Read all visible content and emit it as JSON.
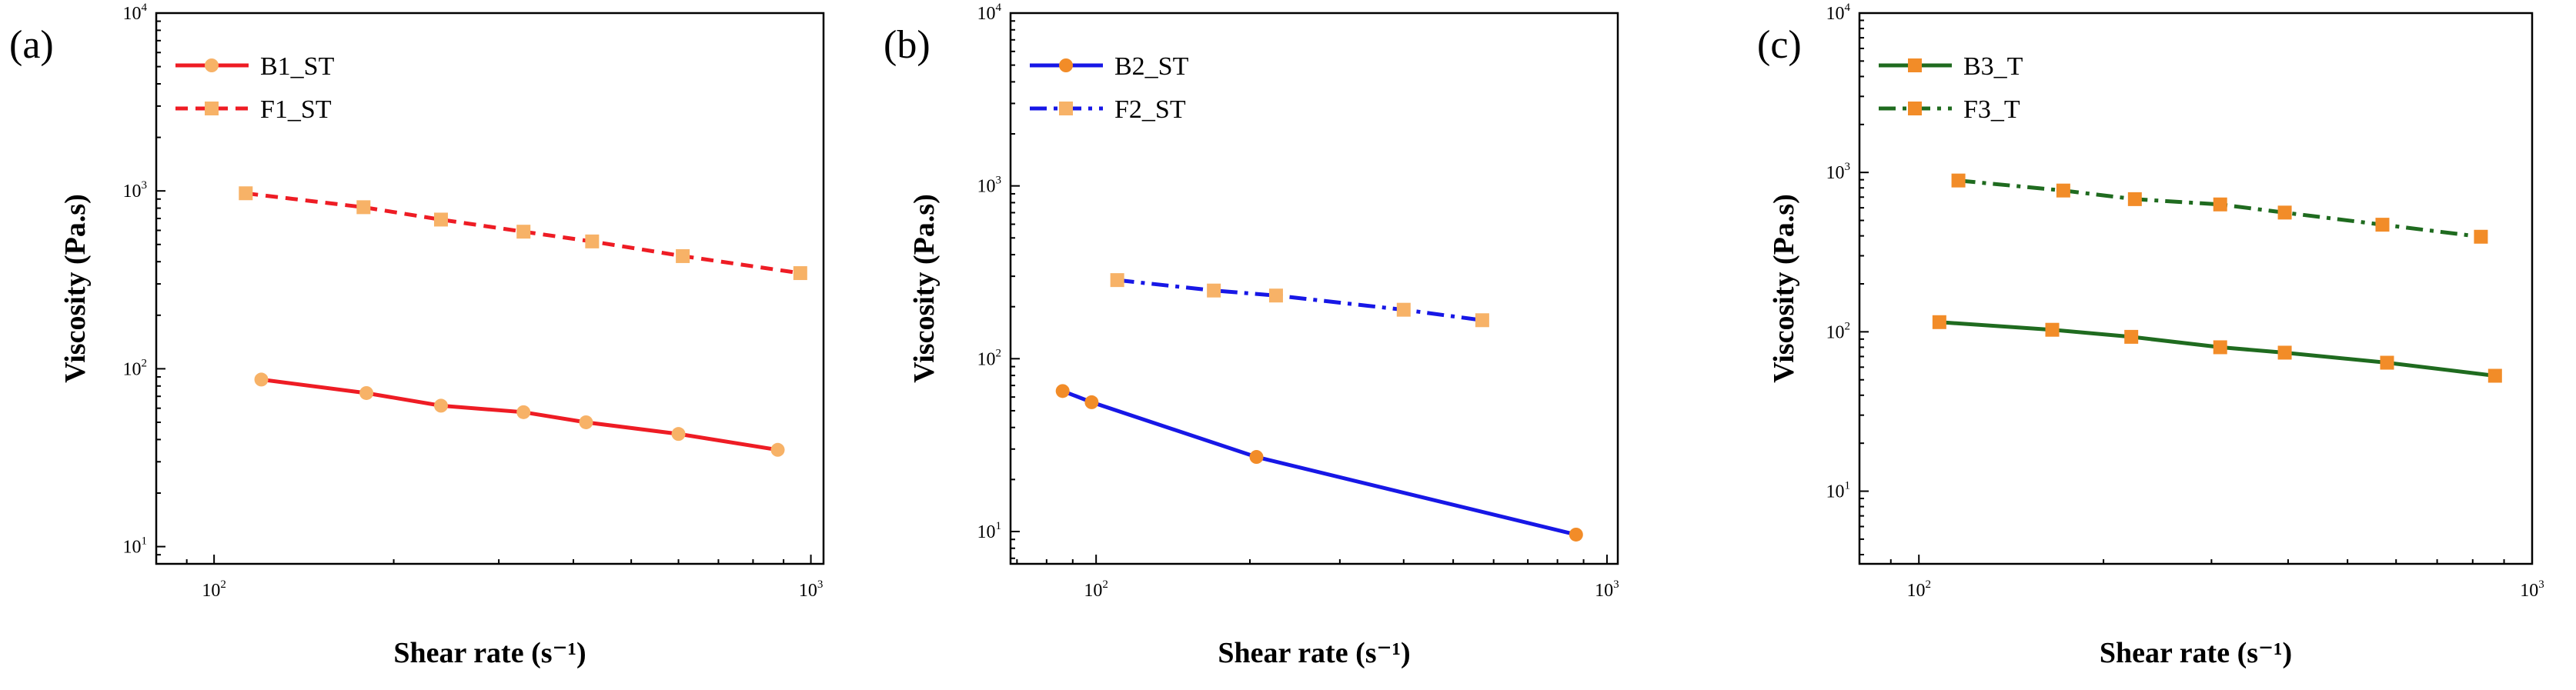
{
  "chart_data": [
    {
      "type": "line",
      "panel_label": "(a)",
      "xlabel": "Shear rate (s⁻¹)",
      "ylabel": "Viscosity (Pa.s)",
      "xscale": "log",
      "yscale": "log",
      "xlim": [
        80,
        1050
      ],
      "ylim": [
        8,
        10000
      ],
      "xticks": [
        {
          "base": "10",
          "exp": "2",
          "value": 100
        },
        {
          "base": "10",
          "exp": "3",
          "value": 1000
        }
      ],
      "yticks": [
        {
          "base": "10",
          "exp": "1",
          "value": 10
        },
        {
          "base": "10",
          "exp": "2",
          "value": 100
        },
        {
          "base": "10",
          "exp": "3",
          "value": 1000
        },
        {
          "base": "10",
          "exp": "4",
          "value": 10000
        }
      ],
      "legend_position": "top-left",
      "series": [
        {
          "name": "B1_ST",
          "color": "#ee1c24",
          "style": "solid",
          "marker": "circle",
          "marker_color": "#f7b267",
          "x": [
            120,
            180,
            240,
            330,
            420,
            600,
            880
          ],
          "y": [
            87,
            73,
            62,
            57,
            50,
            43,
            35
          ]
        },
        {
          "name": "F1_ST",
          "color": "#ee1c24",
          "style": "dash",
          "marker": "square",
          "marker_color": "#f7b267",
          "x": [
            113,
            178,
            240,
            330,
            430,
            610,
            960
          ],
          "y": [
            970,
            810,
            690,
            590,
            520,
            430,
            345
          ]
        }
      ]
    },
    {
      "type": "line",
      "panel_label": "(b)",
      "xlabel": "Shear rate (s⁻¹)",
      "ylabel": "Viscosity (Pa.s)",
      "xscale": "log",
      "yscale": "log",
      "xlim": [
        68,
        1050
      ],
      "ylim": [
        6.5,
        10000
      ],
      "xticks": [
        {
          "base": "10",
          "exp": "2",
          "value": 100
        },
        {
          "base": "10",
          "exp": "3",
          "value": 1000
        }
      ],
      "yticks": [
        {
          "base": "10",
          "exp": "1",
          "value": 10
        },
        {
          "base": "10",
          "exp": "2",
          "value": 100
        },
        {
          "base": "10",
          "exp": "3",
          "value": 1000
        },
        {
          "base": "10",
          "exp": "4",
          "value": 10000
        }
      ],
      "legend_position": "top-left",
      "series": [
        {
          "name": "B2_ST",
          "color": "#1717e6",
          "style": "solid",
          "marker": "circle",
          "marker_color": "#f28c28",
          "x": [
            86,
            98,
            206,
            870
          ],
          "y": [
            65,
            56,
            27,
            9.6
          ]
        },
        {
          "name": "F2_ST",
          "color": "#1717e6",
          "style": "dashdot",
          "marker": "square",
          "marker_color": "#f7b267",
          "x": [
            110,
            170,
            225,
            400,
            570
          ],
          "y": [
            285,
            248,
            232,
            192,
            167
          ]
        }
      ]
    },
    {
      "type": "line",
      "panel_label": "(c)",
      "xlabel": "Shear rate (s⁻¹)",
      "ylabel": "Viscosity (Pa.s)",
      "xscale": "log",
      "yscale": "log",
      "xlim": [
        80,
        1000
      ],
      "ylim": [
        3.5,
        10000
      ],
      "xticks": [
        {
          "base": "10",
          "exp": "2",
          "value": 100
        },
        {
          "base": "10",
          "exp": "3",
          "value": 1000
        }
      ],
      "yticks": [
        {
          "base": "10",
          "exp": "1",
          "value": 10
        },
        {
          "base": "10",
          "exp": "2",
          "value": 100
        },
        {
          "base": "10",
          "exp": "3",
          "value": 1000
        },
        {
          "base": "10",
          "exp": "4",
          "value": 10000
        }
      ],
      "legend_position": "top-left",
      "series": [
        {
          "name": "B3_T",
          "color": "#1f6b1f",
          "style": "solid",
          "marker": "square",
          "marker_color": "#f28c28",
          "x": [
            108,
            165,
            222,
            310,
            395,
            580,
            870
          ],
          "y": [
            115,
            103,
            93,
            80,
            74,
            64,
            53
          ]
        },
        {
          "name": "F3_T",
          "color": "#1f6b1f",
          "style": "dashdot",
          "marker": "square",
          "marker_color": "#f28c28",
          "x": [
            116,
            172,
            225,
            310,
            395,
            570,
            825
          ],
          "y": [
            890,
            770,
            680,
            630,
            560,
            470,
            395
          ]
        }
      ]
    }
  ]
}
